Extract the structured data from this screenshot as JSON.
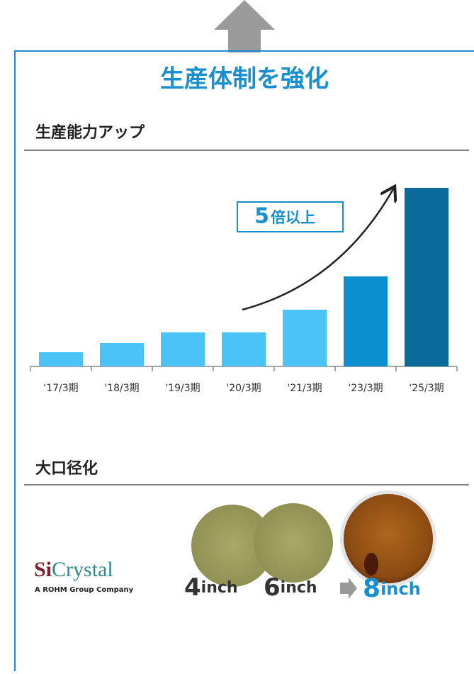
{
  "header": {
    "title": "生産体制を強化"
  },
  "sections": [
    {
      "title": "生産能力アップ"
    },
    {
      "title": "大口径化"
    }
  ],
  "chart_data": {
    "type": "bar",
    "categories": [
      "'17/3期",
      "'18/3期",
      "'19/3期",
      "'20/3期",
      "'21/3期",
      "'23/3期",
      "'25/3期"
    ],
    "values": [
      1.0,
      1.65,
      2.4,
      2.4,
      4.0,
      6.35,
      12.6
    ],
    "colors": [
      "#4cc3f7",
      "#4cc3f7",
      "#4cc3f7",
      "#4cc3f7",
      "#4cc3f7",
      "#0b8fd0",
      "#0a6a9a"
    ],
    "annotation": {
      "number": "5",
      "text": "倍以上"
    }
  },
  "logo": {
    "part1": "Si",
    "part2": "Crystal",
    "tagline": "A ROHM Group Company"
  },
  "wafers": [
    {
      "size": "4",
      "unit": "inch"
    },
    {
      "size": "6",
      "unit": "inch"
    },
    {
      "size": "8",
      "unit": "inch"
    }
  ]
}
